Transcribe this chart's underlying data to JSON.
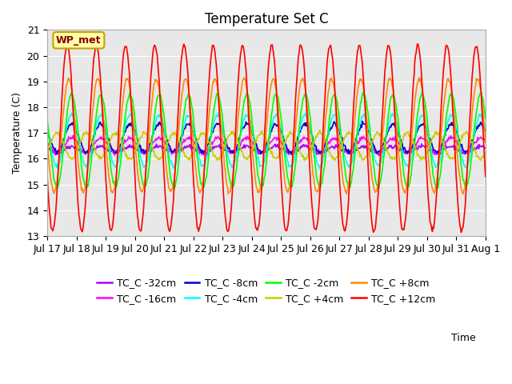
{
  "title": "Temperature Set C",
  "xlabel": "Time",
  "ylabel": "Temperature (C)",
  "ylim": [
    13.0,
    21.0
  ],
  "yticks": [
    13.0,
    14.0,
    15.0,
    16.0,
    17.0,
    18.0,
    19.0,
    20.0,
    21.0
  ],
  "background_color": "#e8e8e8",
  "fig_background": "#ffffff",
  "wp_met_label": "WP_met",
  "series": [
    {
      "label": "TC_C -32cm",
      "color": "#aa00ff",
      "amplitude": 0.13,
      "base": 16.35,
      "phase": 0.0,
      "linewidth": 1.2
    },
    {
      "label": "TC_C -16cm",
      "color": "#ff00ff",
      "amplitude": 0.28,
      "base": 16.52,
      "phase": 0.0,
      "linewidth": 1.2
    },
    {
      "label": "TC_C -8cm",
      "color": "#0000cc",
      "amplitude": 0.55,
      "base": 16.8,
      "phase": 0.0,
      "linewidth": 1.2
    },
    {
      "label": "TC_C -4cm",
      "color": "#00ffff",
      "amplitude": 1.0,
      "base": 16.7,
      "phase": 0.0,
      "linewidth": 1.2
    },
    {
      "label": "TC_C -2cm",
      "color": "#00ff00",
      "amplitude": 1.8,
      "base": 16.7,
      "phase": 0.0,
      "linewidth": 1.2
    },
    {
      "label": "TC_C +4cm",
      "color": "#cccc00",
      "amplitude": 0.5,
      "base": 16.5,
      "phase": 0.5,
      "linewidth": 1.2
    },
    {
      "label": "TC_C +8cm",
      "color": "#ff8800",
      "amplitude": 2.2,
      "base": 16.9,
      "phase": -0.1,
      "linewidth": 1.2
    },
    {
      "label": "TC_C +12cm",
      "color": "#ff0000",
      "amplitude": 3.6,
      "base": 16.8,
      "phase": -0.15,
      "linewidth": 1.2
    }
  ],
  "xtick_labels": [
    "Jul 17",
    "Jul 18",
    "Jul 19",
    "Jul 20",
    "Jul 21",
    "Jul 22",
    "Jul 23",
    "Jul 24",
    "Jul 25",
    "Jul 26",
    "Jul 27",
    "Jul 28",
    "Jul 29",
    "Jul 30",
    "Jul 31",
    "Aug 1"
  ],
  "n_days": 15,
  "points_per_day": 48,
  "legend_fontsize": 9,
  "title_fontsize": 12,
  "axis_fontsize": 9
}
